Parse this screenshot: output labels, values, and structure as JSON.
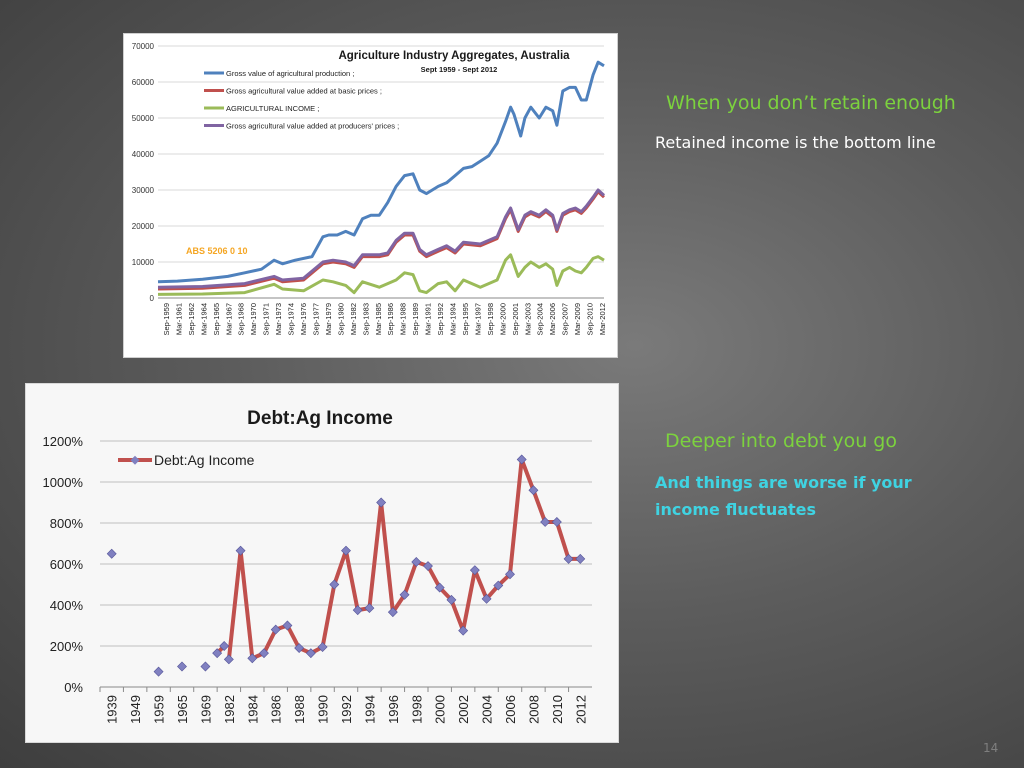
{
  "slide": {
    "heading1": "When you don’t retain enough",
    "text1": "Retained income is the bottom line",
    "heading2": "Deeper into debt you go",
    "text2": "And things are worse if your income fluctuates",
    "page_number": "14"
  },
  "chart_data": [
    {
      "type": "line",
      "title": "Agriculture Industry Aggregates, Australia",
      "subtitle": "Sept 1959 - Sept 2012",
      "annotation": "ABS 5206 0 10",
      "ylim": [
        0,
        70000
      ],
      "yticks": [
        0,
        10000,
        20000,
        30000,
        40000,
        50000,
        60000,
        70000
      ],
      "x_tick_labels": [
        "Sep-1959",
        "Mar-1961",
        "Sep-1962",
        "Mar-1964",
        "Sep-1965",
        "Mar-1967",
        "Sep-1968",
        "Mar-1970",
        "Sep-1971",
        "Mar-1973",
        "Sep-1974",
        "Mar-1976",
        "Sep-1977",
        "Mar-1979",
        "Sep-1980",
        "Mar-1982",
        "Sep-1983",
        "Mar-1985",
        "Sep-1986",
        "Mar-1988",
        "Sep-1989",
        "Mar-1991",
        "Sep-1992",
        "Mar-1994",
        "Sep-1995",
        "Mar-1997",
        "Sep-1998",
        "Mar-2000",
        "Sep-2001",
        "Mar-2003",
        "Sep-2004",
        "Mar-2006",
        "Sep-2007",
        "Mar-2009",
        "Sep-2010",
        "Mar-2012"
      ],
      "x_range": [
        1959.7,
        2012.7
      ],
      "legend_position": "top-left",
      "series": [
        {
          "name": "Gross value of agricultural production ;",
          "color": "#4f81bd",
          "x": [
            1959.7,
            1962,
            1965,
            1968,
            1970,
            1972,
            1973.5,
            1974.5,
            1976,
            1978,
            1979.3,
            1980,
            1981,
            1982,
            1983,
            1984,
            1985,
            1986,
            1987,
            1988,
            1989,
            1990,
            1990.8,
            1991.6,
            1993,
            1994,
            1995,
            1996,
            1997,
            1998,
            1999,
            2000,
            2001,
            2001.6,
            2002,
            2002.8,
            2003.3,
            2004,
            2005,
            2005.8,
            2006.6,
            2007.1,
            2007.8,
            2008.6,
            2009.3,
            2010,
            2010.6,
            2011.4,
            2012,
            2012.7
          ],
          "y": [
            4500,
            4700,
            5200,
            6000,
            7000,
            8000,
            10500,
            9500,
            10500,
            11500,
            17000,
            17500,
            17500,
            18500,
            17500,
            22000,
            23000,
            23000,
            26500,
            31000,
            34000,
            34500,
            30000,
            29000,
            31000,
            32000,
            34000,
            36000,
            36500,
            38000,
            39500,
            43000,
            49000,
            53000,
            51000,
            45000,
            50000,
            53000,
            50000,
            53000,
            52000,
            48000,
            57500,
            58500,
            58500,
            55000,
            55000,
            62000,
            65500,
            64500
          ]
        },
        {
          "name": "Gross agricultural value added at basic prices ;",
          "color": "#c0504d",
          "x": [
            1959.7,
            1965,
            1970,
            1973.5,
            1974.5,
            1977,
            1979.3,
            1980.5,
            1982,
            1983,
            1984,
            1986,
            1987,
            1988,
            1989,
            1990,
            1990.8,
            1991.6,
            1993,
            1994,
            1995,
            1996,
            1998,
            2000,
            2001,
            2001.6,
            2002.5,
            2003.3,
            2004,
            2005,
            2005.8,
            2006.6,
            2007.1,
            2007.8,
            2008.6,
            2009.3,
            2010,
            2010.6,
            2011.4,
            2012,
            2012.7
          ],
          "y": [
            2500,
            2700,
            3500,
            5500,
            4500,
            5000,
            9500,
            10000,
            9500,
            8500,
            11500,
            11500,
            12000,
            15500,
            17500,
            17500,
            13000,
            11500,
            13000,
            14000,
            12500,
            15000,
            14500,
            16500,
            22000,
            24500,
            18500,
            22500,
            23500,
            22500,
            24000,
            22500,
            18500,
            23000,
            24000,
            24500,
            23500,
            25000,
            27500,
            29500,
            28000
          ]
        },
        {
          "name": "AGRICULTURAL INCOME ;",
          "color": "#9bbb59",
          "x": [
            1959.7,
            1965,
            1970,
            1973.5,
            1974.5,
            1977,
            1979.3,
            1980.5,
            1982,
            1983,
            1984,
            1986,
            1987,
            1988,
            1989,
            1990,
            1990.8,
            1991.6,
            1993,
            1994,
            1995,
            1996,
            1998,
            2000,
            2001,
            2001.6,
            2002.5,
            2003.3,
            2004,
            2005,
            2005.8,
            2006.6,
            2007.1,
            2007.8,
            2008.6,
            2009.3,
            2010,
            2010.6,
            2011.4,
            2012,
            2012.7
          ],
          "y": [
            1000,
            1100,
            1500,
            3800,
            2500,
            2000,
            5000,
            4500,
            3500,
            1500,
            4500,
            3000,
            4000,
            5000,
            7000,
            6500,
            2000,
            1500,
            4000,
            4500,
            2000,
            5000,
            3000,
            5000,
            10500,
            12000,
            6000,
            8500,
            10000,
            8500,
            9500,
            8000,
            3500,
            7500,
            8500,
            7500,
            7000,
            8500,
            11000,
            11500,
            10500
          ]
        },
        {
          "name": "Gross agricultural value added at producers' prices ;",
          "color": "#8064a2",
          "x": [
            1959.7,
            1965,
            1970,
            1973.5,
            1974.5,
            1977,
            1979.3,
            1980.5,
            1982,
            1983,
            1984,
            1986,
            1987,
            1988,
            1989,
            1990,
            1990.8,
            1991.6,
            1993,
            1994,
            1995,
            1996,
            1998,
            2000,
            2001,
            2001.6,
            2002.5,
            2003.3,
            2004,
            2005,
            2005.8,
            2006.6,
            2007.1,
            2007.8,
            2008.6,
            2009.3,
            2010,
            2010.6,
            2011.4,
            2012,
            2012.7
          ],
          "y": [
            3000,
            3200,
            4000,
            6000,
            5000,
            5500,
            10000,
            10500,
            10000,
            9000,
            12000,
            12000,
            12500,
            16000,
            18000,
            18000,
            13500,
            12000,
            13500,
            14500,
            13000,
            15500,
            15000,
            17000,
            22500,
            25000,
            19000,
            23000,
            24000,
            23000,
            24500,
            23000,
            19000,
            23500,
            24500,
            25000,
            24000,
            25500,
            28000,
            30000,
            28500
          ]
        }
      ]
    },
    {
      "type": "line",
      "title": "Debt:Ag Income",
      "series_name": "Debt:Ag Income",
      "ylim": [
        0,
        1200
      ],
      "ytick_values": [
        0,
        200,
        400,
        600,
        800,
        1000,
        1200
      ],
      "ytick_labels": [
        "0%",
        "200%",
        "400%",
        "600%",
        "800%",
        "1000%",
        "1200%"
      ],
      "category_labels": [
        "1939",
        "1949",
        "1959",
        "1965",
        "1969",
        "1982",
        "1984",
        "1986",
        "1988",
        "1990",
        "1992",
        "1994",
        "1996",
        "1998",
        "2000",
        "2002",
        "2004",
        "2006",
        "2008",
        "2010",
        "2012"
      ],
      "legend_position": "top-left",
      "color": "#c0504d",
      "marker_color": "#8080c0",
      "isolated_points": [
        {
          "i": 0,
          "y": 650
        },
        {
          "i": 2,
          "y": 75
        },
        {
          "i": 3,
          "y": 100
        },
        {
          "i": 4,
          "y": 100
        }
      ],
      "segments": [
        [
          {
            "i": 4.5,
            "y": 165
          },
          {
            "i": 4.8,
            "y": 200
          }
        ],
        [
          {
            "i": 5,
            "y": 135
          },
          {
            "i": 5.5,
            "y": 665
          },
          {
            "i": 6,
            "y": 140
          },
          {
            "i": 6.5,
            "y": 165
          },
          {
            "i": 7,
            "y": 280
          },
          {
            "i": 7.5,
            "y": 300
          },
          {
            "i": 8,
            "y": 190
          },
          {
            "i": 8.5,
            "y": 165
          },
          {
            "i": 9,
            "y": 195
          },
          {
            "i": 9.5,
            "y": 500
          },
          {
            "i": 10,
            "y": 665
          },
          {
            "i": 10.5,
            "y": 375
          },
          {
            "i": 11,
            "y": 385
          },
          {
            "i": 11.5,
            "y": 900
          },
          {
            "i": 12,
            "y": 365
          },
          {
            "i": 12.5,
            "y": 450
          },
          {
            "i": 13,
            "y": 610
          },
          {
            "i": 13.5,
            "y": 590
          },
          {
            "i": 14,
            "y": 485
          },
          {
            "i": 14.5,
            "y": 425
          },
          {
            "i": 15,
            "y": 275
          },
          {
            "i": 15.5,
            "y": 570
          },
          {
            "i": 16,
            "y": 430
          },
          {
            "i": 16.5,
            "y": 495
          },
          {
            "i": 17,
            "y": 550
          },
          {
            "i": 17.5,
            "y": 1110
          },
          {
            "i": 18,
            "y": 960
          },
          {
            "i": 18.5,
            "y": 805
          },
          {
            "i": 19,
            "y": 805
          },
          {
            "i": 19.5,
            "y": 625
          },
          {
            "i": 20,
            "y": 625
          }
        ]
      ]
    }
  ]
}
